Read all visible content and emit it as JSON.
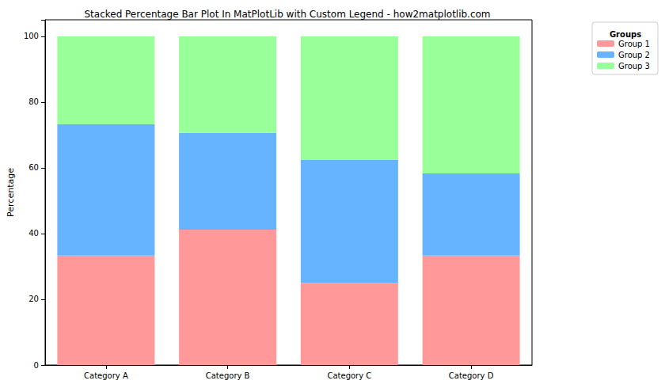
{
  "chart_data": {
    "type": "bar",
    "title": "Stacked Percentage Bar Plot In MatPlotLib with Custom Legend - how2matplotlib.com",
    "y_label": "Percentage",
    "categories": [
      "Category A",
      "Category B",
      "Category C",
      "Category D"
    ],
    "series": [
      {
        "name": "Group 1",
        "color": "#ff9999",
        "values": [
          33.3,
          41.2,
          25.0,
          33.3
        ]
      },
      {
        "name": "Group 2",
        "color": "#66b3ff",
        "values": [
          40.0,
          29.4,
          37.5,
          25.0
        ]
      },
      {
        "name": "Group 3",
        "color": "#99ff99",
        "values": [
          26.7,
          29.4,
          37.5,
          41.7
        ]
      }
    ],
    "ylim": [
      0,
      105
    ],
    "yticks": [
      0,
      20,
      40,
      60,
      80,
      100
    ],
    "stacked": true,
    "grid": false,
    "legend": "upper right outside",
    "legend_title": "Groups"
  }
}
